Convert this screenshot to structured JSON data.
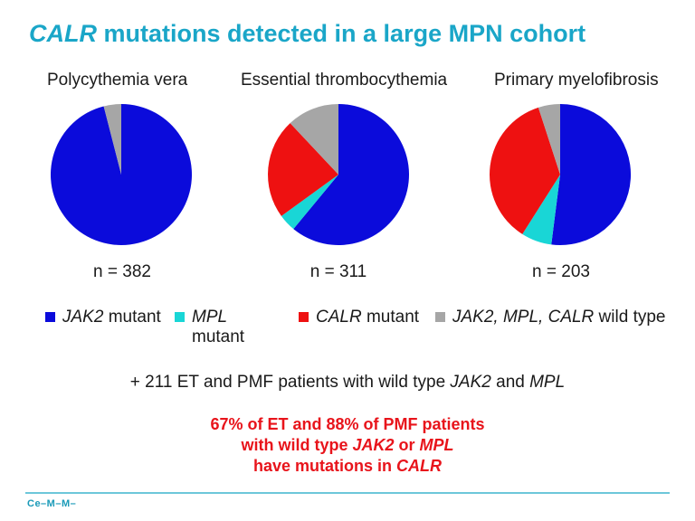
{
  "title": {
    "emph": "CALR",
    "rest": " mutations detected in a large MPN cohort"
  },
  "colors": {
    "jak2": "#0b0bdb",
    "mpl": "#19d6d6",
    "calr": "#ee1111",
    "wild": "#a6a6a6",
    "title": "#1aa6c8",
    "conclusion": "#e8141b"
  },
  "chart_data": [
    {
      "type": "pie",
      "title": "Polycythemia vera",
      "n_label": "n = 382",
      "categories": [
        "JAK2 mutant",
        "MPL mutant",
        "CALR mutant",
        "JAK2, MPL, CALR wild type"
      ],
      "values": [
        96,
        0,
        0,
        4
      ]
    },
    {
      "type": "pie",
      "title": "Essential thrombocythemia",
      "n_label": "n = 311",
      "categories": [
        "JAK2 mutant",
        "MPL mutant",
        "CALR mutant",
        "JAK2, MPL, CALR wild type"
      ],
      "values": [
        61,
        4,
        23,
        12
      ]
    },
    {
      "type": "pie",
      "title": "Primary myelofibrosis",
      "n_label": "n = 203",
      "categories": [
        "JAK2 mutant",
        "MPL mutant",
        "CALR mutant",
        "JAK2, MPL, CALR wild type"
      ],
      "values": [
        52,
        7,
        36,
        5
      ]
    }
  ],
  "legend": {
    "jak2_italic": "JAK2",
    "jak2_rest": " mutant",
    "mpl_italic": "MPL",
    "mpl_rest": "mutant",
    "calr_italic": "CALR",
    "calr_rest": " mutant",
    "wild_italic": "JAK2, MPL, CALR",
    "wild_rest": " wild type"
  },
  "wt_line": {
    "a": "+ 211 ET and PMF patients with wild type ",
    "b": "JAK2",
    "c": " and ",
    "d": "MPL"
  },
  "conclusion": {
    "line1": "67% of ET and 88% of PMF patients",
    "line2a": "with wild type ",
    "line2b": "JAK2",
    "line2c": " or ",
    "line2d": "MPL",
    "line3a": "have mutations in ",
    "line3b": "CALR"
  },
  "footer": {
    "logo": "Ce–M–M–"
  }
}
